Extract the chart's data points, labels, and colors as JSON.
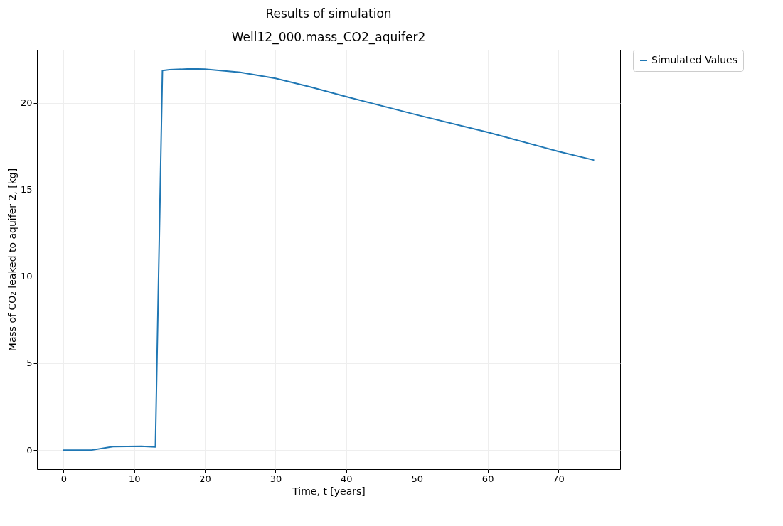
{
  "chart_data": {
    "type": "line",
    "title": "Results of simulation",
    "subtitle": "Well12_000.mass_CO2_aquifer2",
    "xlabel": "Time, t [years]",
    "ylabel": "Mass of CO₂ leaked to aquifer 2, [kg]",
    "series": [
      {
        "name": "Simulated Values",
        "color": "#1f77b4",
        "x": [
          0,
          4,
          7,
          11,
          13,
          14,
          15,
          18,
          20,
          25,
          30,
          35,
          40,
          50,
          60,
          70,
          75
        ],
        "values": [
          0,
          0,
          0.2,
          0.22,
          0.18,
          21.85,
          21.9,
          21.95,
          21.93,
          21.75,
          21.4,
          20.9,
          20.35,
          19.3,
          18.3,
          17.2,
          16.7
        ]
      }
    ],
    "xlim": [
      -3.75,
      78.75
    ],
    "xticks": [
      0,
      10,
      20,
      30,
      40,
      50,
      60,
      70
    ],
    "ylim": [
      -1.1,
      23.05
    ],
    "yticks": [
      0,
      5,
      10,
      15,
      20
    ],
    "grid": true,
    "legend": "right",
    "marker": "none",
    "line_style": "solid"
  }
}
